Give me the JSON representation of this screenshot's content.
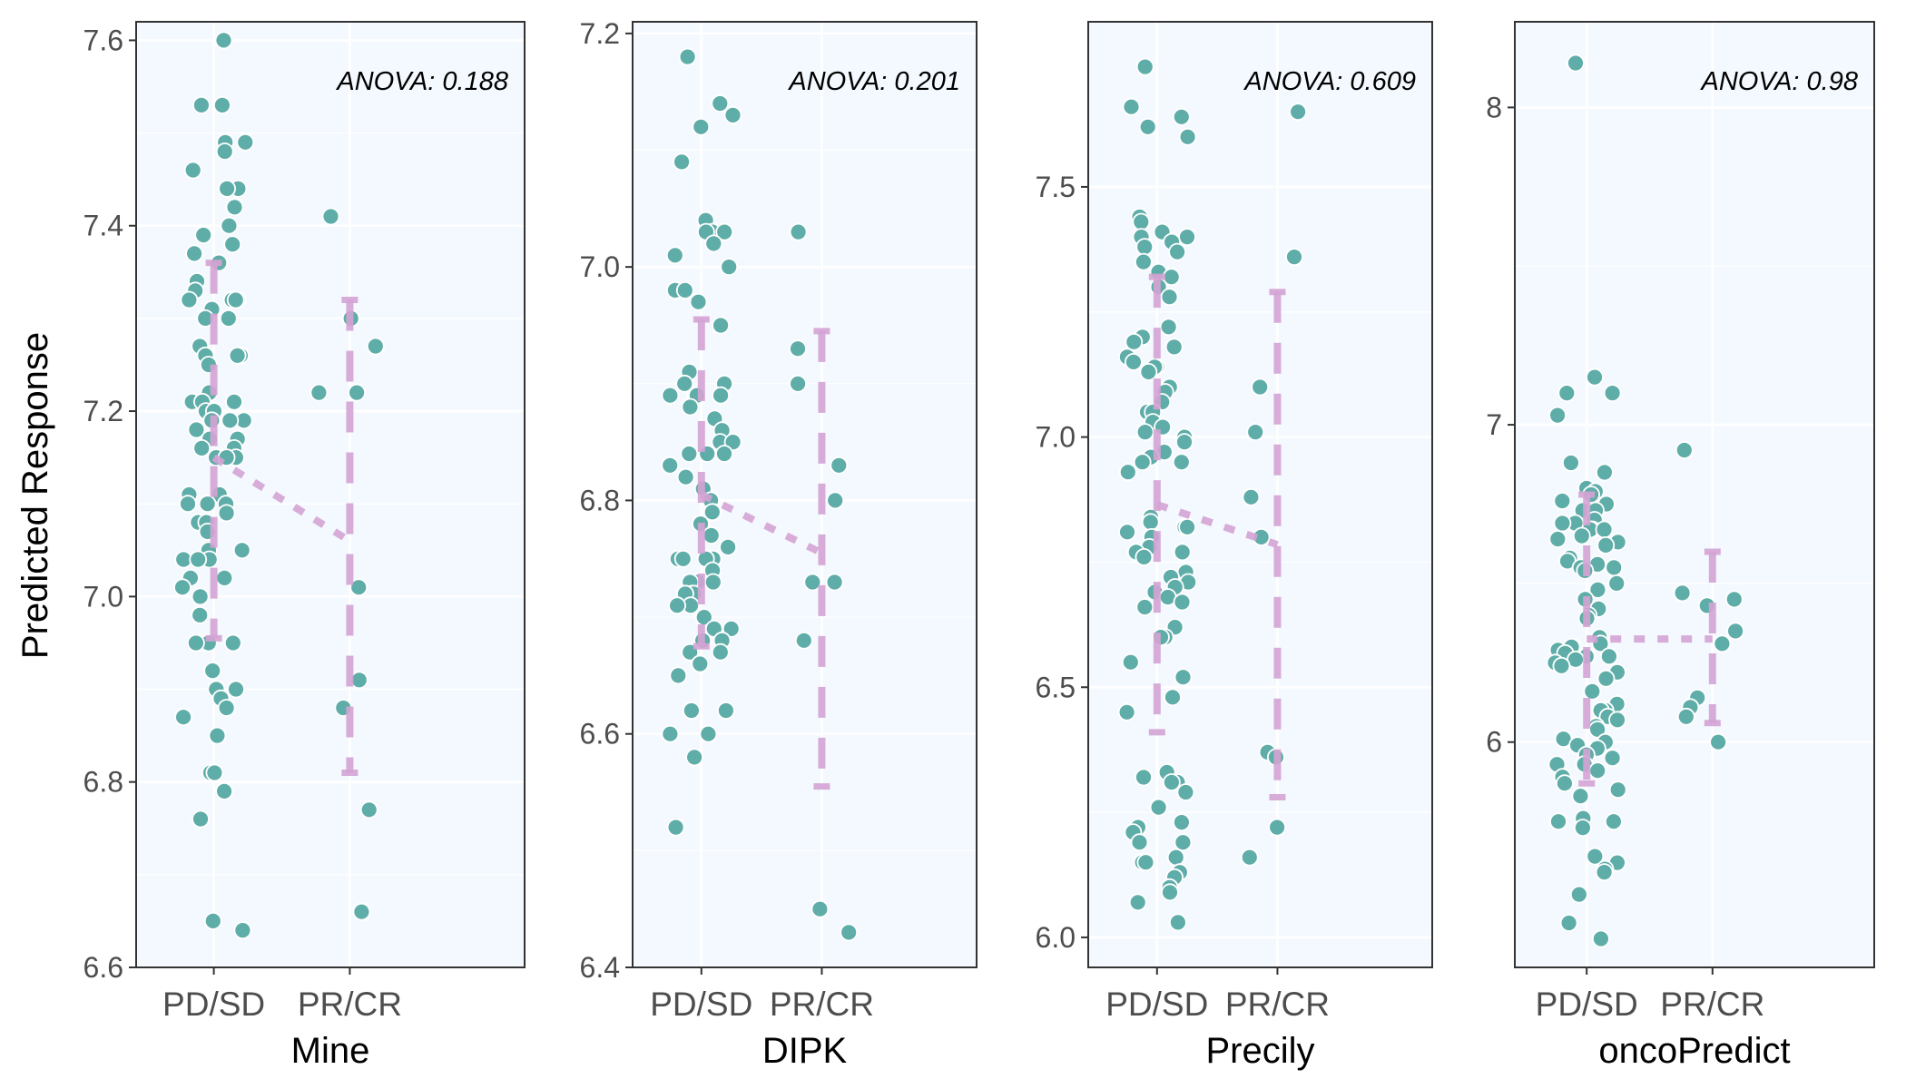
{
  "colors": {
    "point_fill": "#5fada8",
    "point_stroke": "#ffffff",
    "summary": "#d4a4d4",
    "panel_bg": "#f4f9ff",
    "grid": "#ffffff",
    "border": "#333333"
  },
  "chart_data": {
    "type": "scatter",
    "ylabel": "Predicted Response",
    "categories": [
      "PD/SD",
      "PR/CR"
    ],
    "panels": [
      {
        "xlabel": "Mine",
        "annotation": "ANOVA: 0.188",
        "ylim": [
          6.6,
          7.62
        ],
        "yticks": [
          6.6,
          6.8,
          7.0,
          7.2,
          7.4,
          7.6
        ],
        "tick_labels": [
          "6.6",
          "6.8",
          "7.0",
          "7.2",
          "7.4",
          "7.6"
        ],
        "summary": [
          {
            "mean": 7.15,
            "low": 6.955,
            "high": 7.36
          },
          {
            "mean": 7.06,
            "low": 6.81,
            "high": 7.32
          }
        ],
        "groups": [
          {
            "category": "PD/SD",
            "y": [
              7.6,
              7.53,
              7.53,
              7.49,
              7.49,
              7.48,
              7.46,
              7.44,
              7.44,
              7.42,
              7.4,
              7.39,
              7.38,
              7.37,
              7.36,
              7.34,
              7.33,
              7.32,
              7.32,
              7.32,
              7.32,
              7.31,
              7.3,
              7.3,
              7.27,
              7.26,
              7.26,
              7.26,
              7.25,
              7.22,
              7.21,
              7.21,
              7.21,
              7.21,
              7.2,
              7.2,
              7.19,
              7.19,
              7.19,
              7.18,
              7.17,
              7.17,
              7.16,
              7.16,
              7.15,
              7.15,
              7.15,
              7.11,
              7.11,
              7.1,
              7.1,
              7.1,
              7.09,
              7.08,
              7.08,
              7.07,
              7.05,
              7.05,
              7.04,
              7.04,
              7.04,
              7.02,
              7.02,
              7.01,
              7.0,
              6.98,
              6.95,
              6.95,
              6.95,
              6.92,
              6.9,
              6.9,
              6.89,
              6.88,
              6.87,
              6.85,
              6.81,
              6.81,
              6.79,
              6.76,
              6.65,
              6.64
            ]
          },
          {
            "category": "PR/CR",
            "y": [
              7.41,
              7.3,
              7.27,
              7.22,
              7.22,
              7.01,
              6.91,
              6.88,
              6.77,
              6.66
            ]
          }
        ]
      },
      {
        "xlabel": "DIPK",
        "annotation": "ANOVA: 0.201",
        "ylim": [
          6.4,
          7.21
        ],
        "yticks": [
          6.4,
          6.6,
          6.8,
          7.0,
          7.2
        ],
        "tick_labels": [
          "6.4",
          "6.6",
          "6.8",
          "7.0",
          "7.2"
        ],
        "summary": [
          {
            "mean": 6.805,
            "low": 6.675,
            "high": 6.955
          },
          {
            "mean": 6.755,
            "low": 6.555,
            "high": 6.945
          }
        ],
        "groups": [
          {
            "category": "PD/SD",
            "y": [
              7.18,
              7.14,
              7.13,
              7.12,
              7.09,
              7.04,
              7.03,
              7.03,
              7.03,
              7.02,
              7.01,
              7.0,
              6.98,
              6.98,
              6.97,
              6.95,
              6.91,
              6.9,
              6.9,
              6.89,
              6.89,
              6.89,
              6.89,
              6.88,
              6.87,
              6.86,
              6.85,
              6.85,
              6.84,
              6.84,
              6.84,
              6.83,
              6.82,
              6.81,
              6.8,
              6.79,
              6.79,
              6.78,
              6.77,
              6.76,
              6.75,
              6.75,
              6.75,
              6.75,
              6.74,
              6.73,
              6.73,
              6.73,
              6.72,
              6.72,
              6.72,
              6.71,
              6.71,
              6.7,
              6.69,
              6.69,
              6.68,
              6.68,
              6.67,
              6.67,
              6.66,
              6.66,
              6.65,
              6.62,
              6.62,
              6.6,
              6.6,
              6.58,
              6.52
            ]
          },
          {
            "category": "PR/CR",
            "y": [
              7.03,
              6.93,
              6.9,
              6.83,
              6.8,
              6.73,
              6.73,
              6.68,
              6.45,
              6.43
            ]
          }
        ]
      },
      {
        "xlabel": "Precily",
        "annotation": "ANOVA: 0.609",
        "ylim": [
          5.94,
          7.83
        ],
        "yticks": [
          6.0,
          6.5,
          7.0,
          7.5
        ],
        "tick_labels": [
          "6.0",
          "6.5",
          "7.0",
          "7.5"
        ],
        "summary": [
          {
            "mean": 6.865,
            "low": 6.41,
            "high": 7.32
          },
          {
            "mean": 6.785,
            "low": 6.28,
            "high": 7.29
          }
        ],
        "groups": [
          {
            "category": "PD/SD",
            "y": [
              7.74,
              7.66,
              7.64,
              7.62,
              7.6,
              7.44,
              7.43,
              7.41,
              7.4,
              7.4,
              7.39,
              7.38,
              7.37,
              7.35,
              7.33,
              7.32,
              7.3,
              7.28,
              7.22,
              7.2,
              7.19,
              7.18,
              7.16,
              7.15,
              7.14,
              7.14,
              7.13,
              7.1,
              7.09,
              7.07,
              7.05,
              7.05,
              7.03,
              7.02,
              7.01,
              7.0,
              6.99,
              6.97,
              6.96,
              6.95,
              6.95,
              6.93,
              6.84,
              6.83,
              6.82,
              6.82,
              6.81,
              6.8,
              6.78,
              6.77,
              6.77,
              6.76,
              6.73,
              6.72,
              6.71,
              6.7,
              6.69,
              6.68,
              6.67,
              6.66,
              6.62,
              6.6,
              6.6,
              6.6,
              6.55,
              6.52,
              6.48,
              6.45,
              6.33,
              6.32,
              6.31,
              6.31,
              6.29,
              6.26,
              6.23,
              6.22,
              6.21,
              6.19,
              6.19,
              6.16,
              6.15,
              6.15,
              6.13,
              6.12,
              6.1,
              6.09,
              6.07,
              6.03
            ]
          },
          {
            "category": "PR/CR",
            "y": [
              7.65,
              7.36,
              7.1,
              7.01,
              6.88,
              6.8,
              6.37,
              6.36,
              6.22,
              6.16
            ]
          }
        ]
      },
      {
        "xlabel": "oncoPredict",
        "annotation": "ANOVA: 0.98",
        "ylim": [
          5.29,
          8.27
        ],
        "yticks": [
          6,
          7,
          8
        ],
        "tick_labels": [
          "6",
          "7",
          "8"
        ],
        "summary": [
          {
            "mean": 6.325,
            "low": 5.87,
            "high": 6.78
          },
          {
            "mean": 6.325,
            "low": 6.06,
            "high": 6.6
          }
        ],
        "groups": [
          {
            "category": "PD/SD",
            "y": [
              8.14,
              7.15,
              7.1,
              7.1,
              7.03,
              6.88,
              6.85,
              6.8,
              6.79,
              6.78,
              6.76,
              6.75,
              6.73,
              6.73,
              6.7,
              6.69,
              6.69,
              6.67,
              6.67,
              6.67,
              6.65,
              6.64,
              6.63,
              6.62,
              6.62,
              6.58,
              6.57,
              6.56,
              6.55,
              6.55,
              6.54,
              6.5,
              6.48,
              6.45,
              6.42,
              6.4,
              6.39,
              6.33,
              6.31,
              6.3,
              6.3,
              6.29,
              6.28,
              6.27,
              6.27,
              6.26,
              6.25,
              6.24,
              6.22,
              6.2,
              6.16,
              6.12,
              6.1,
              6.1,
              6.08,
              6.07,
              6.05,
              6.04,
              6.01,
              6.0,
              5.99,
              5.98,
              5.96,
              5.95,
              5.93,
              5.93,
              5.91,
              5.89,
              5.87,
              5.85,
              5.83,
              5.76,
              5.75,
              5.75,
              5.73,
              5.64,
              5.62,
              5.6,
              5.59,
              5.52,
              5.43,
              5.38
            ]
          },
          {
            "category": "PR/CR",
            "y": [
              6.92,
              6.47,
              6.45,
              6.43,
              6.35,
              6.31,
              6.14,
              6.11,
              6.08,
              6.0
            ]
          }
        ]
      }
    ]
  }
}
